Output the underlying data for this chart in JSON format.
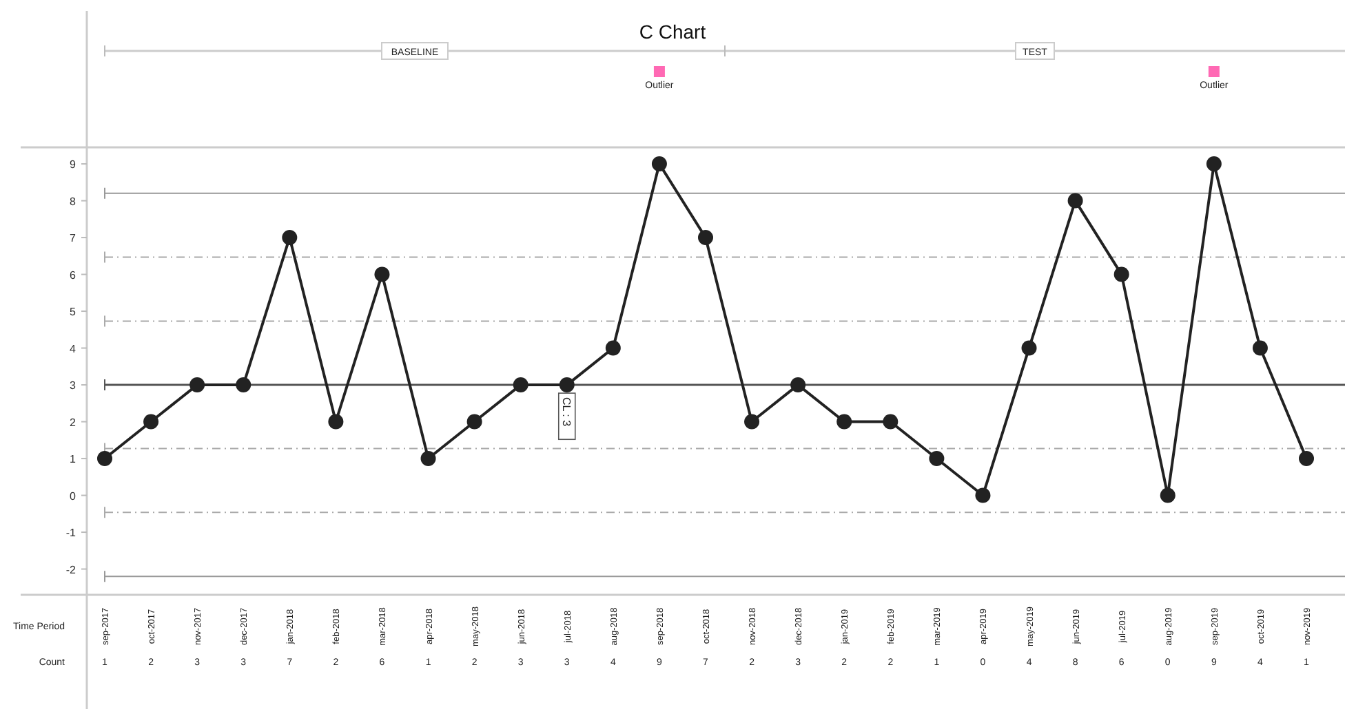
{
  "chart_data": {
    "type": "line",
    "title": "C Chart",
    "xlabel": "Time Period",
    "ylabel": "Count",
    "categories": [
      "sep-2017",
      "oct-2017",
      "nov-2017",
      "dec-2017",
      "jan-2018",
      "feb-2018",
      "mar-2018",
      "apr-2018",
      "may-2018",
      "jun-2018",
      "jul-2018",
      "aug-2018",
      "sep-2018",
      "oct-2018",
      "nov-2018",
      "dec-2018",
      "jan-2019",
      "feb-2019",
      "mar-2019",
      "apr-2019",
      "may-2019",
      "jun-2019",
      "jul-2019",
      "aug-2019",
      "sep-2019",
      "oct-2019",
      "nov-2019"
    ],
    "series": [
      {
        "color": "#222222",
        "values": [
          1,
          2,
          3,
          3,
          7,
          2,
          6,
          1,
          2,
          3,
          3,
          4,
          9,
          7,
          2,
          3,
          2,
          2,
          1,
          0,
          4,
          8,
          6,
          0,
          9,
          4,
          1
        ]
      }
    ],
    "marker": "circle",
    "line_style": "solid",
    "data_labels": true,
    "ylim": [
      -2.7,
      9.45
    ],
    "yticks": [
      -2,
      -1,
      0,
      1,
      2,
      3,
      4,
      5,
      6,
      7,
      8,
      9
    ],
    "grid": false,
    "ref_lines": [
      {
        "axis": "y",
        "value": 8.2,
        "label": null,
        "color": "#999999",
        "line_style": "solid"
      },
      {
        "axis": "y",
        "value": 6.47,
        "label": null,
        "color": "#aaaaaa",
        "line_style": "dashed"
      },
      {
        "axis": "y",
        "value": 4.73,
        "label": null,
        "color": "#aaaaaa",
        "line_style": "dashed"
      },
      {
        "axis": "y",
        "value": 3,
        "label": "CL : 3",
        "color": "#555555",
        "line_style": "solid"
      },
      {
        "axis": "y",
        "value": 1.27,
        "label": null,
        "color": "#aaaaaa",
        "line_style": "dashed"
      },
      {
        "axis": "y",
        "value": -0.46,
        "label": null,
        "color": "#aaaaaa",
        "line_style": "dashed"
      },
      {
        "axis": "y",
        "value": -2.2,
        "label": null,
        "color": "#999999",
        "line_style": "solid"
      }
    ],
    "annotations": [
      "BASELINE",
      "TEST",
      "Outlier",
      "Outlier"
    ]
  }
}
